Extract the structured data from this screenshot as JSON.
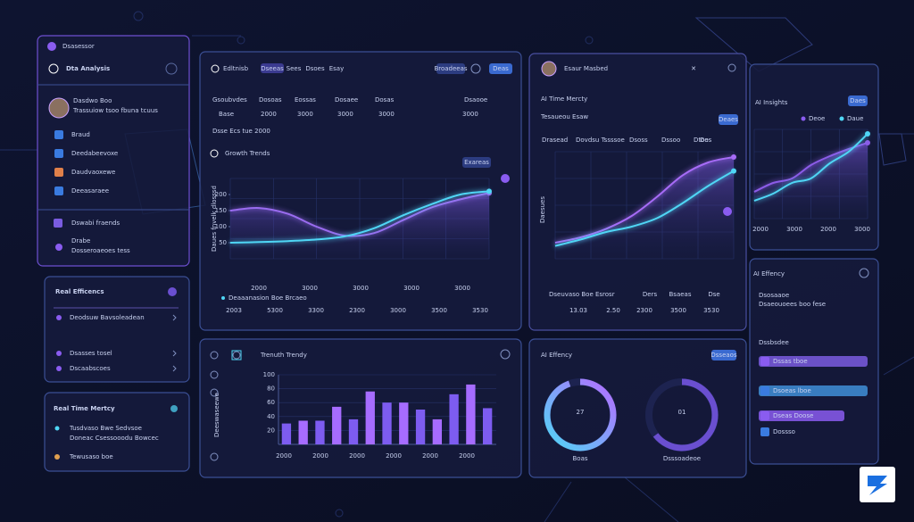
{
  "sidebar": {
    "header": "Dsasessor",
    "title": "Dta Analysis",
    "user": {
      "name": "Dasdwo Boo",
      "desc": "Trassuiow tsoo fbuna tcuus"
    },
    "menu": [
      "Braud",
      "Deedabeevoxe",
      "Daudvaoxewe",
      "Deeasaraee"
    ],
    "section": {
      "title": "Dswabi fraends",
      "item": "Drabe",
      "desc": "Dosseroaeoes tess"
    }
  },
  "real_efficiency": {
    "title": "Real Efficencs",
    "items": [
      "Deodsuw Bavsoleadean",
      "Dsasses tosel",
      "Dscaabscoes"
    ]
  },
  "real_time": {
    "title": "Real Time Mertcy",
    "lines": [
      "Tusdvaso Bwe Sedvsoe",
      "Doneac Csessooodu Bowcec"
    ],
    "item": "Tewusaso boe"
  },
  "growth": {
    "header": "Edltnisb",
    "tabs": [
      "Dseeas",
      "Sees",
      "Dsoes",
      "Esay"
    ],
    "buttons": [
      "Broadeeas",
      "Deas"
    ],
    "stat_labels": [
      "Gsoubvdes",
      "Dosoas",
      "Eossas",
      "Dosaee",
      "Dosas",
      "Dsaooe"
    ],
    "stat_values": [
      "Base",
      "2000",
      "3000",
      "3000",
      "3000",
      "3000"
    ],
    "subtitle": "Dsse Ecs tue 2000",
    "title": "Growth Trends",
    "badge": "Exareas",
    "ylabel": "Daues fnvelk dlosssd",
    "ylim": [
      0,
      250
    ],
    "yticks": [
      200,
      150,
      100,
      50
    ],
    "x_labels": [
      "2000",
      "3000",
      "3000",
      "3000",
      "3000"
    ],
    "legend": "Deaaanasion Boe Brcaeo",
    "totals": [
      "2003",
      "5300",
      "3300",
      "2300",
      "3000",
      "3500",
      "3530"
    ],
    "series": [
      {
        "color": "#9a6cf0",
        "values": [
          150,
          158,
          140,
          100,
          72,
          80,
          120,
          160,
          185,
          205
        ]
      },
      {
        "color": "#4fd6f5",
        "values": [
          50,
          52,
          55,
          60,
          70,
          95,
          135,
          170,
          200,
          210
        ]
      }
    ]
  },
  "trends": {
    "title": "Trenuth Trendy",
    "ylabel": "Deeswaseewe",
    "ylim": [
      0,
      100
    ],
    "yticks": [
      100,
      80,
      60,
      40,
      20
    ],
    "x_labels": [
      "2000",
      "2000",
      "2000",
      "2000",
      "2000",
      "2000"
    ],
    "colors": [
      "#7d5cf0",
      "#a66cff"
    ],
    "values": [
      30,
      34,
      34,
      54,
      36,
      76,
      60,
      60,
      50,
      36,
      72,
      86,
      52
    ]
  },
  "ai_time": {
    "user": "Esaur Masbed",
    "title": "AI Time Mercty",
    "subtitle": "Tesaueou Esaw",
    "badge": "Deaes",
    "legend": [
      "Drasead",
      "Dovdsu Tssssoe",
      "Dsoss",
      "Dssoo",
      "Dtoe",
      "Dos"
    ],
    "ylabel": "Daesues",
    "ylim": [
      0,
      100
    ],
    "series": [
      {
        "color": "#a76cf7",
        "values": [
          15,
          20,
          28,
          40,
          58,
          78,
          90,
          95
        ]
      },
      {
        "color": "#4fd6f5",
        "values": [
          12,
          18,
          25,
          30,
          38,
          52,
          68,
          82
        ]
      }
    ],
    "x_labels": [
      "Dseuvaso Boe Esrosr",
      "Ders",
      "Bsaeas",
      "Dse"
    ],
    "totals": [
      "13.03",
      "2.50",
      "2300",
      "3500",
      "3530"
    ]
  },
  "ai_insights": {
    "title": "AI Insights",
    "badge": "Daes",
    "legend": [
      "Deoe",
      "Daue"
    ],
    "ylim": [
      0,
      100
    ],
    "series": [
      {
        "color": "#8c5ce8",
        "values": [
          30,
          40,
          45,
          60,
          70,
          78,
          85
        ]
      },
      {
        "color": "#4fd6f5",
        "values": [
          20,
          28,
          40,
          45,
          62,
          75,
          95
        ]
      }
    ],
    "x_labels": [
      "2000",
      "3000",
      "2000",
      "3000"
    ]
  },
  "ai_efficiency": {
    "title": "AI Effency",
    "badge": "Dsseaos",
    "rings": [
      {
        "label": "27",
        "caption": "Boas"
      },
      {
        "label": "01",
        "caption": "Dsssoadeoe"
      }
    ]
  },
  "ai_efficiency_side": {
    "title": "AI Effency",
    "subtitle": "Dsosaaoe",
    "desc": "Dsaeouoees boo fese",
    "section": "Dssbsdee",
    "bars": [
      {
        "label": "Dssas tboe",
        "color": "#7a5ce0"
      },
      {
        "label": "Dsoeas lboe",
        "color": "#3f8fd8"
      },
      {
        "label": "Dseas Doose",
        "color": "#8a5cf0"
      },
      {
        "label": "Dossso",
        "color": "#2a3560"
      }
    ]
  }
}
